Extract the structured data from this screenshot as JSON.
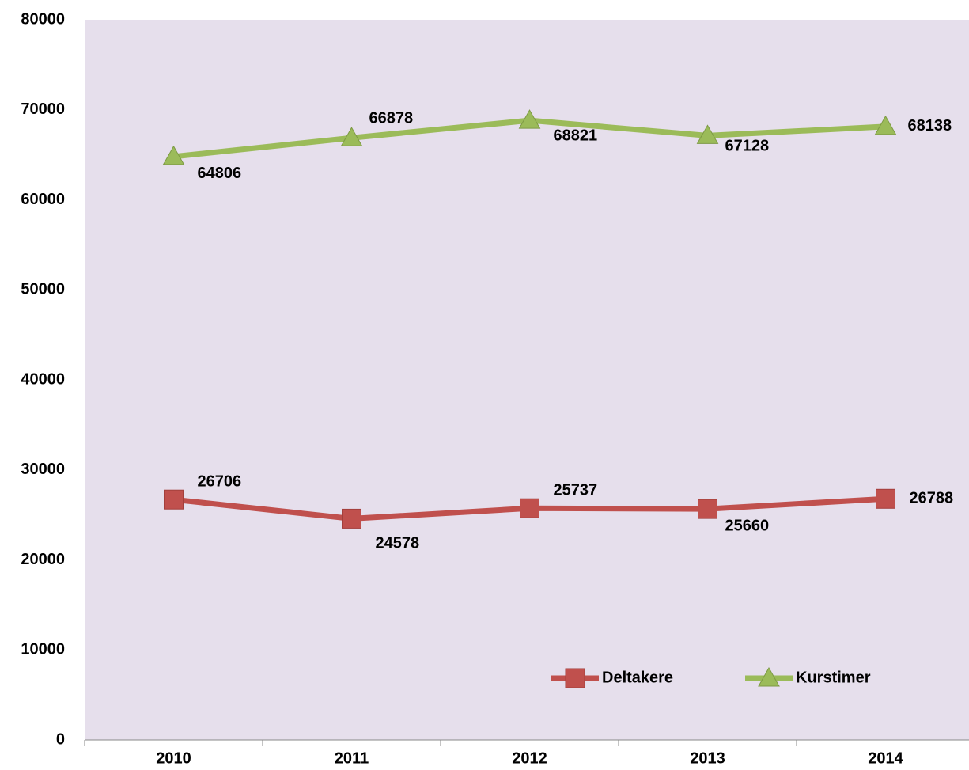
{
  "chart_data": {
    "type": "line",
    "categories": [
      "2010",
      "2011",
      "2012",
      "2013",
      "2014"
    ],
    "series": [
      {
        "name": "Deltakere",
        "color": "#c0504d",
        "marker": "square",
        "values": [
          26706,
          24578,
          25737,
          25660,
          26788
        ]
      },
      {
        "name": "Kurstimer",
        "color": "#9bbb59",
        "marker": "triangle",
        "values": [
          64806,
          66878,
          68821,
          67128,
          68138
        ]
      }
    ],
    "ylim": [
      0,
      80000
    ],
    "yticks": [
      0,
      10000,
      20000,
      30000,
      40000,
      50000,
      60000,
      70000,
      80000
    ],
    "grid": false,
    "legend": "lower right",
    "plot_background": "#e6dfec"
  }
}
